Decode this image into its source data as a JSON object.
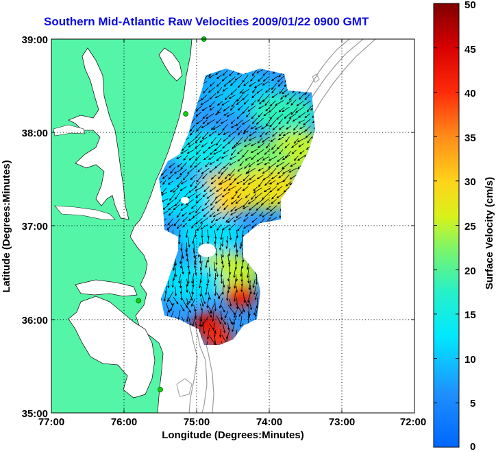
{
  "title": "Southern Mid-Atlantic Raw Velocities 2009/01/22 0900 GMT",
  "x_axis": {
    "label": "Longitude (Degrees:Minutes)",
    "ticks": [
      "77:00",
      "76:00",
      "75:00",
      "74:00",
      "73:00",
      "72:00"
    ]
  },
  "y_axis": {
    "label": "Latitude (Degrees:Minutes)",
    "ticks": [
      "39:00",
      "38:00",
      "37:00",
      "36:00",
      "35:00"
    ]
  },
  "colorbar": {
    "label": "Surface Velocity (cm/s)",
    "ticks": [
      "50",
      "45",
      "40",
      "35",
      "30",
      "25",
      "20",
      "15",
      "10",
      "5",
      "0"
    ],
    "min": 0,
    "max": 50
  },
  "colors": {
    "land": "#55f5a8",
    "ocean": "#ffffff",
    "title": "#0a0ae6",
    "grid": "#000000",
    "arrows": "#000000",
    "bathymetry": "#9a9a9a"
  },
  "map": {
    "lon_range": [
      -77,
      -72
    ],
    "lat_range": [
      35,
      39
    ],
    "grid": true,
    "coastline": "mid-atlantic (Delaware, Maryland, Virginia, North Carolina)",
    "stations_color": "#11cc11"
  },
  "chart_data": {
    "type": "heatmap",
    "title": "Southern Mid-Atlantic Raw Velocities 2009/01/22 0900 GMT",
    "xlabel": "Longitude (Degrees:Minutes)",
    "ylabel": "Latitude (Degrees:Minutes)",
    "xlim": [
      -77,
      -72
    ],
    "ylim": [
      35,
      39
    ],
    "colorbar_label": "Surface Velocity (cm/s)",
    "colorbar_range": [
      0,
      50
    ],
    "grid": true,
    "regions": [
      {
        "lon": -74.9,
        "lat": 38.5,
        "speed": 8
      },
      {
        "lon": -74.3,
        "lat": 38.4,
        "speed": 10
      },
      {
        "lon": -73.8,
        "lat": 38.2,
        "speed": 18
      },
      {
        "lon": -73.6,
        "lat": 37.8,
        "speed": 25
      },
      {
        "lon": -74.2,
        "lat": 37.7,
        "speed": 22
      },
      {
        "lon": -74.9,
        "lat": 37.8,
        "speed": 14
      },
      {
        "lon": -74.6,
        "lat": 37.35,
        "speed": 30
      },
      {
        "lon": -74.0,
        "lat": 37.4,
        "speed": 28
      },
      {
        "lon": -75.2,
        "lat": 37.3,
        "speed": 12
      },
      {
        "lon": -74.8,
        "lat": 36.9,
        "speed": 12
      },
      {
        "lon": -74.6,
        "lat": 36.5,
        "speed": 25
      },
      {
        "lon": -74.4,
        "lat": 36.25,
        "speed": 42
      },
      {
        "lon": -74.85,
        "lat": 35.95,
        "speed": 44
      },
      {
        "lon": -74.7,
        "lat": 35.8,
        "speed": 40
      },
      {
        "lon": -75.1,
        "lat": 36.4,
        "speed": 12
      }
    ],
    "stations": [
      {
        "lon": -74.9,
        "lat": 39.0
      },
      {
        "lon": -75.15,
        "lat": 38.2
      },
      {
        "lon": -75.8,
        "lat": 36.2
      },
      {
        "lon": -75.5,
        "lat": 35.25
      }
    ]
  }
}
